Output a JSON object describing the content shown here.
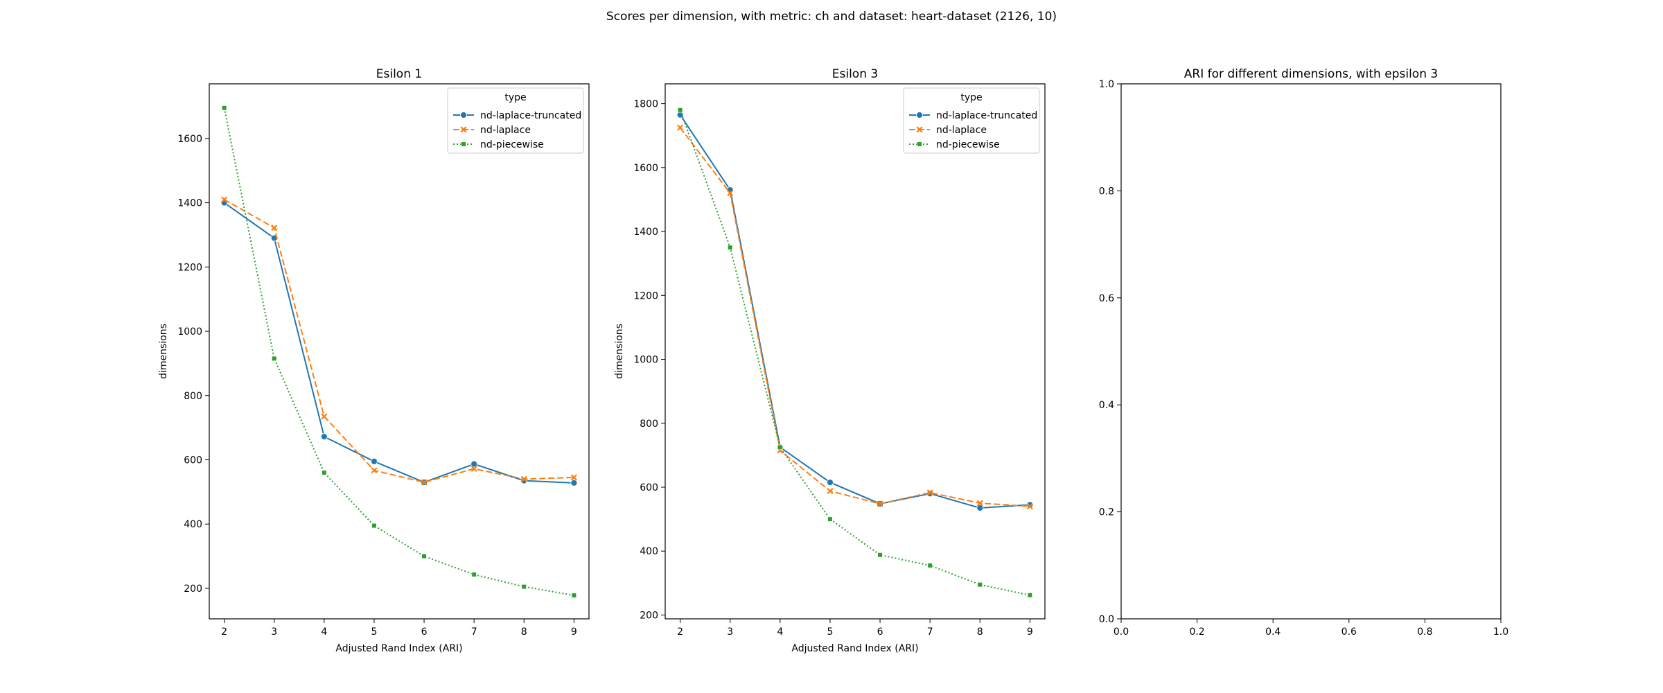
{
  "figure": {
    "suptitle": "Scores per dimension, with metric: ch and dataset: heart-dataset (2126, 10)"
  },
  "colors": {
    "nd-laplace-truncated": "#1f77b4",
    "nd-laplace": "#ff7f0e",
    "nd-piecewise": "#2ca02c"
  },
  "chart_data": [
    {
      "type": "line",
      "title": "Esilon 1",
      "xlabel": "Adjusted Rand Index (ARI)",
      "ylabel": "dimensions",
      "x": [
        2,
        3,
        4,
        5,
        6,
        7,
        8,
        9
      ],
      "xlim": [
        1.7,
        9.3
      ],
      "ylim": [
        105,
        1770
      ],
      "xticks": [
        2,
        3,
        4,
        5,
        6,
        7,
        8,
        9
      ],
      "yticks": [
        200,
        400,
        600,
        800,
        1000,
        1200,
        1400,
        1600
      ],
      "grid": false,
      "legend": {
        "title": "type",
        "placement": "top-right"
      },
      "series": [
        {
          "name": "nd-laplace-truncated",
          "style": "solid",
          "marker": "circle",
          "values": [
            1400,
            1290,
            672,
            595,
            530,
            587,
            535,
            528
          ]
        },
        {
          "name": "nd-laplace",
          "style": "dashed",
          "marker": "x",
          "values": [
            1410,
            1322,
            735,
            567,
            530,
            572,
            540,
            545
          ]
        },
        {
          "name": "nd-piecewise",
          "style": "dotted",
          "marker": "square",
          "values": [
            1695,
            915,
            560,
            395,
            300,
            243,
            205,
            178
          ]
        }
      ]
    },
    {
      "type": "line",
      "title": "Esilon 3",
      "xlabel": "Adjusted Rand Index (ARI)",
      "ylabel": "dimensions",
      "x": [
        2,
        3,
        4,
        5,
        6,
        7,
        8,
        9
      ],
      "xlim": [
        1.7,
        9.3
      ],
      "ylim": [
        188,
        1862
      ],
      "xticks": [
        2,
        3,
        4,
        5,
        6,
        7,
        8,
        9
      ],
      "yticks": [
        200,
        400,
        600,
        800,
        1000,
        1200,
        1400,
        1600,
        1800
      ],
      "grid": false,
      "legend": {
        "title": "type",
        "placement": "top-right"
      },
      "series": [
        {
          "name": "nd-laplace-truncated",
          "style": "solid",
          "marker": "circle",
          "values": [
            1765,
            1530,
            725,
            615,
            548,
            580,
            535,
            545
          ]
        },
        {
          "name": "nd-laplace",
          "style": "dashed",
          "marker": "x",
          "values": [
            1725,
            1520,
            715,
            588,
            548,
            583,
            550,
            540
          ]
        },
        {
          "name": "nd-piecewise",
          "style": "dotted",
          "marker": "square",
          "values": [
            1780,
            1350,
            725,
            500,
            388,
            355,
            295,
            262
          ]
        }
      ]
    },
    {
      "type": "line",
      "title": "ARI for different dimensions, with epsilon 3",
      "xlabel": "",
      "ylabel": "",
      "xlim": [
        0,
        1
      ],
      "ylim": [
        0,
        1
      ],
      "xticks": [
        "0.0",
        "0.2",
        "0.4",
        "0.6",
        "0.8",
        "1.0"
      ],
      "yticks": [
        "0.0",
        "0.2",
        "0.4",
        "0.6",
        "0.8",
        "1.0"
      ],
      "grid": false,
      "series": []
    }
  ]
}
